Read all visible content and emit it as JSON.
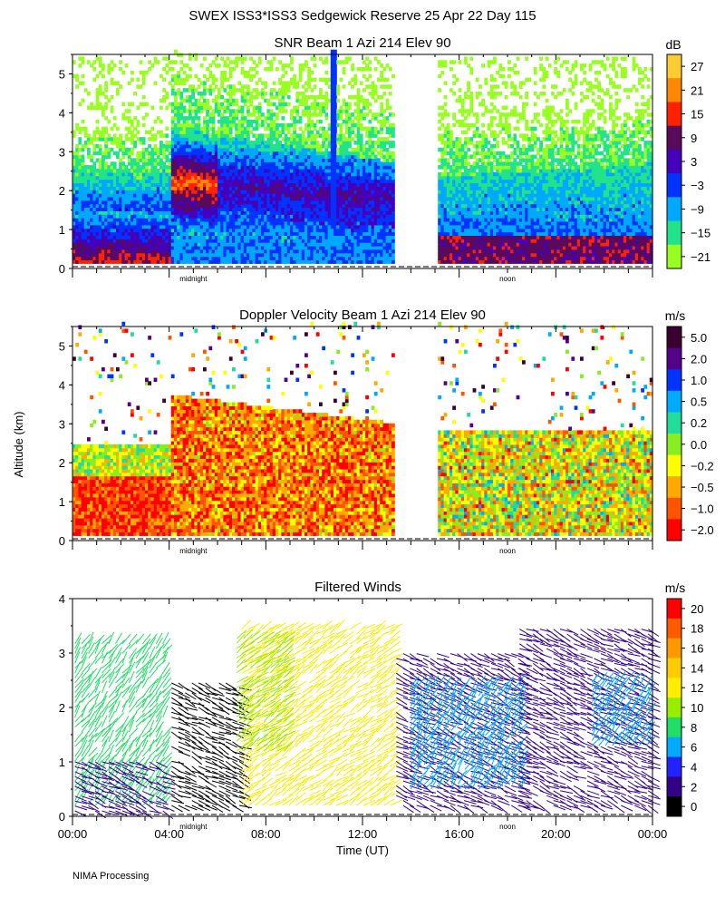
{
  "figure_title": "SWEX ISS3*ISS3 Sedgewick Reserve  25 Apr 22 Day 115",
  "footer": "NIMA Processing",
  "y_axis_label": "Altitude (km)",
  "x_axis_label": "Time (UT)",
  "chart_data": [
    {
      "type": "heatmap",
      "title": "SNR Beam 1 Azi 214 Elev 90",
      "xlabel": "",
      "ylabel": "Altitude (km)",
      "xlim": [
        0,
        24
      ],
      "ylim": [
        0,
        5.5
      ],
      "yticks": [
        "0",
        "1",
        "2",
        "3",
        "4",
        "5"
      ],
      "time_markers": [
        "midnight",
        "noon"
      ],
      "colorbar": {
        "unit": "dB",
        "labels": [
          "27",
          "21",
          "15",
          "9",
          "3",
          "−3",
          "−9",
          "−15",
          "−21"
        ],
        "colors": [
          "#ffcc33",
          "#ff8800",
          "#ff2200",
          "#5a0a5a",
          "#4400bb",
          "#0033ff",
          "#00a8ff",
          "#22e38a",
          "#99ff22"
        ]
      }
    },
    {
      "type": "heatmap",
      "title": "Doppler Velocity Beam 1 Azi 214 Elev 90",
      "xlabel": "",
      "ylabel": "Altitude (km)",
      "xlim": [
        0,
        24
      ],
      "ylim": [
        0,
        5.5
      ],
      "yticks": [
        "0",
        "1",
        "2",
        "3",
        "4",
        "5"
      ],
      "time_markers": [
        "midnight",
        "noon"
      ],
      "colorbar": {
        "unit": "m/s",
        "labels": [
          "5.0",
          "2.0",
          "1.0",
          "0.5",
          "0.2",
          "0.0",
          "−0.2",
          "−0.5",
          "−1.0",
          "−2.0"
        ],
        "colors": [
          "#3a0030",
          "#55008a",
          "#0033ff",
          "#00aaff",
          "#22dd99",
          "#88ee22",
          "#ffff00",
          "#ffaa00",
          "#ff5500",
          "#ff0000"
        ]
      }
    },
    {
      "type": "scatter",
      "title": "Filtered Winds",
      "xlabel": "Time (UT)",
      "ylabel": "Altitude (km)",
      "xlim": [
        0,
        24
      ],
      "ylim": [
        0,
        4
      ],
      "xticks": [
        "00:00",
        "04:00",
        "08:00",
        "12:00",
        "16:00",
        "20:00",
        "00:00"
      ],
      "yticks": [
        "0",
        "1",
        "2",
        "3",
        "4"
      ],
      "time_markers": [
        "midnight",
        "noon"
      ],
      "colorbar": {
        "unit": "m/s",
        "labels": [
          "20",
          "18",
          "16",
          "14",
          "12",
          "10",
          "8",
          "6",
          "4",
          "2",
          "0"
        ],
        "colors": [
          "#ff0000",
          "#ff5a00",
          "#ff9900",
          "#ffcc00",
          "#ffee00",
          "#99ee00",
          "#22dd66",
          "#00aaff",
          "#2222ff",
          "#330088",
          "#000000"
        ]
      },
      "wind_groups": [
        {
          "x0": 0.1,
          "x1": 3.9,
          "y0": 0.2,
          "y1": 3.2,
          "speed": 8
        },
        {
          "x0": 0.1,
          "x1": 3.9,
          "y0": 0.1,
          "y1": 1.0,
          "speed": 3
        },
        {
          "x0": 4.1,
          "x1": 7.0,
          "y0": 0.2,
          "y1": 2.5,
          "speed": 1
        },
        {
          "x0": 7.0,
          "x1": 13.3,
          "y0": 0.2,
          "y1": 3.5,
          "speed": 13
        },
        {
          "x0": 6.8,
          "x1": 9.0,
          "y0": 1.2,
          "y1": 3.3,
          "speed": 10
        },
        {
          "x0": 13.4,
          "x1": 18.5,
          "y0": 0.2,
          "y1": 3.0,
          "speed": 3
        },
        {
          "x0": 14.0,
          "x1": 18.5,
          "y0": 0.5,
          "y1": 2.4,
          "speed": 6
        },
        {
          "x0": 18.5,
          "x1": 23.9,
          "y0": 0.2,
          "y1": 3.5,
          "speed": 3
        },
        {
          "x0": 21.5,
          "x1": 23.9,
          "y0": 1.3,
          "y1": 2.5,
          "speed": 6
        }
      ]
    }
  ]
}
